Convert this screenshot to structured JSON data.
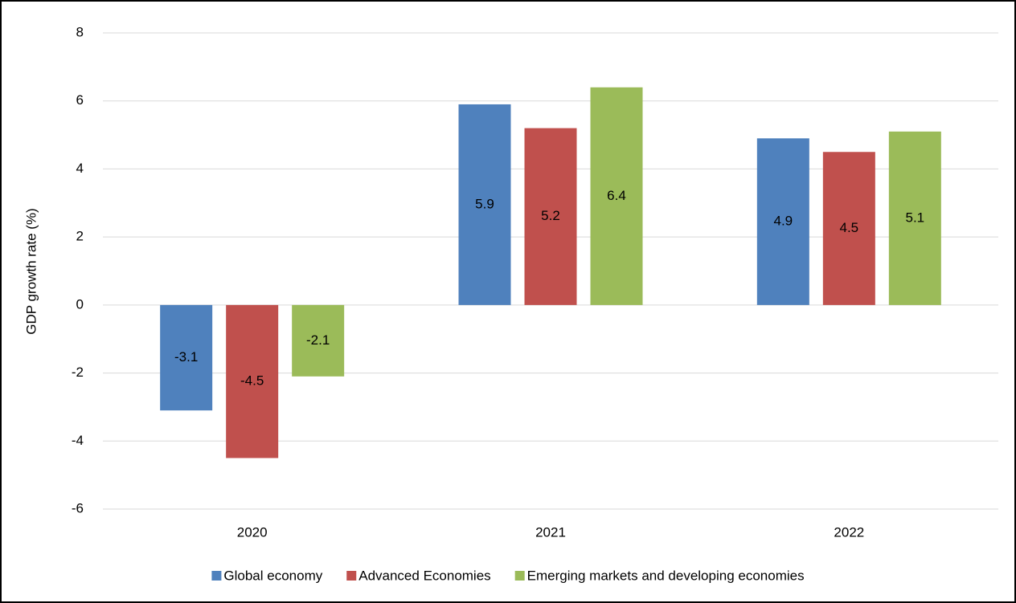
{
  "chart_data": {
    "type": "bar",
    "y_label": "GDP growth rate (%)",
    "categories": [
      "2020",
      "2021",
      "2022"
    ],
    "series": [
      {
        "name": "Global economy",
        "color": "#4f81bd",
        "values": [
          -3.1,
          5.9,
          4.9
        ]
      },
      {
        "name": "Advanced Economies",
        "color": "#c0504d",
        "values": [
          -4.5,
          5.2,
          4.5
        ]
      },
      {
        "name": "Emerging markets and developing economies",
        "color": "#9bbb59",
        "values": [
          -2.1,
          6.4,
          5.1
        ]
      }
    ],
    "ylim": [
      -6,
      8
    ],
    "yticks": [
      -6,
      -4,
      -2,
      0,
      2,
      4,
      6,
      8
    ],
    "grid": true,
    "legend": "bottom"
  }
}
